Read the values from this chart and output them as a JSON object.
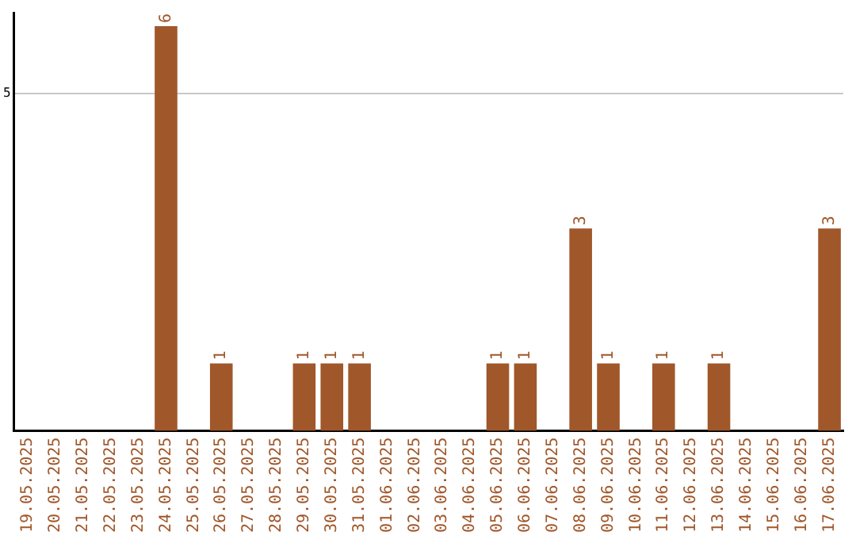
{
  "chart_data": {
    "type": "bar",
    "categories": [
      "19.05.2025",
      "20.05.2025",
      "21.05.2025",
      "22.05.2025",
      "23.05.2025",
      "24.05.2025",
      "25.05.2025",
      "26.05.2025",
      "27.05.2025",
      "28.05.2025",
      "29.05.2025",
      "30.05.2025",
      "31.05.2025",
      "01.06.2025",
      "02.06.2025",
      "03.06.2025",
      "04.06.2025",
      "05.06.2025",
      "06.06.2025",
      "07.06.2025",
      "08.06.2025",
      "09.06.2025",
      "10.06.2025",
      "11.06.2025",
      "12.06.2025",
      "13.06.2025",
      "14.06.2025",
      "15.06.2025",
      "16.06.2025",
      "17.06.2025"
    ],
    "values": [
      0,
      0,
      0,
      0,
      0,
      6,
      0,
      1,
      0,
      0,
      1,
      1,
      1,
      0,
      0,
      0,
      0,
      1,
      1,
      0,
      3,
      1,
      0,
      1,
      0,
      1,
      0,
      0,
      0,
      3
    ],
    "value_labels": [
      null,
      null,
      null,
      null,
      null,
      "6",
      null,
      "1",
      null,
      null,
      "1",
      "1",
      "1",
      null,
      null,
      null,
      null,
      "1",
      "1",
      null,
      "3",
      "1",
      null,
      "1",
      null,
      "1",
      null,
      null,
      null,
      "3"
    ],
    "color": "#a0572a",
    "ylim": [
      0,
      6.2
    ],
    "yticks": [
      5
    ],
    "grid": "y",
    "legend": false
  }
}
